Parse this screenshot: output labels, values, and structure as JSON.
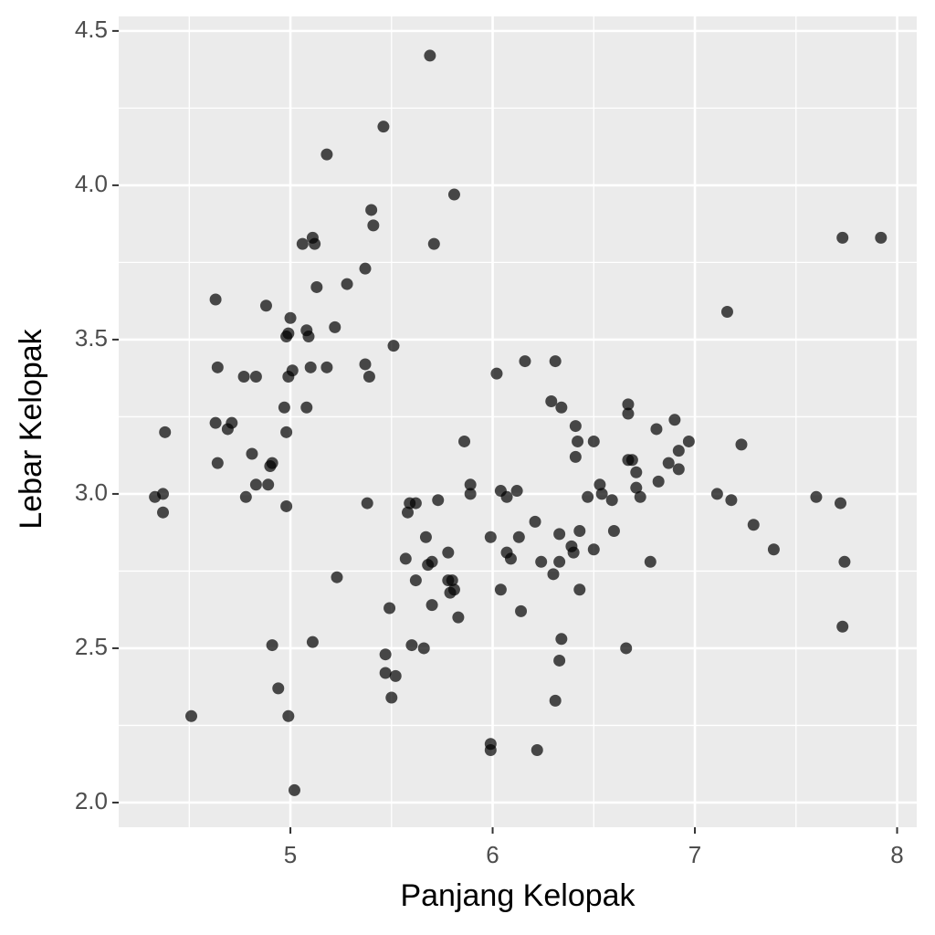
{
  "chart_data": {
    "type": "scatter",
    "x_label": "Panjang Kelopak",
    "y_label": "Lebar Kelopak",
    "xlim": [
      4.151,
      8.097
    ],
    "ylim": [
      1.92,
      4.547
    ],
    "xticks": [
      5,
      6,
      7,
      8
    ],
    "yticks": [
      {
        "value": 2,
        "label": "2.0"
      },
      2.5,
      {
        "value": 3,
        "label": "3.0"
      },
      3.5,
      {
        "value": 4,
        "label": "4.0"
      },
      4.5
    ],
    "grid": true,
    "minor_grid": true,
    "color": "#000000",
    "opacity": 0.7,
    "x": [
      4.33,
      4.37,
      4.37,
      4.38,
      4.51,
      4.63,
      4.64,
      4.63,
      4.64,
      4.69,
      4.71,
      4.77,
      4.83,
      4.78,
      4.81,
      4.83,
      4.88,
      4.89,
      4.9,
      4.91,
      4.91,
      4.94,
      4.98,
      5.0,
      4.99,
      4.97,
      4.98,
      4.98,
      4.99,
      4.99,
      5.01,
      5.02,
      5.06,
      5.08,
      5.09,
      5.08,
      5.1,
      5.11,
      5.12,
      5.13,
      5.11,
      5.18,
      5.18,
      5.22,
      5.23,
      5.28,
      5.37,
      5.37,
      5.39,
      5.38,
      5.4,
      5.41,
      5.46,
      5.47,
      5.47,
      5.49,
      5.5,
      5.51,
      5.52,
      5.57,
      5.58,
      5.59,
      5.6,
      5.62,
      5.62,
      5.66,
      5.67,
      5.68,
      5.69,
      5.7,
      5.7,
      5.71,
      5.73,
      5.78,
      5.78,
      5.79,
      5.8,
      5.81,
      5.81,
      5.83,
      5.86,
      5.89,
      5.89,
      5.99,
      5.99,
      5.99,
      6.02,
      6.04,
      6.04,
      6.07,
      6.07,
      6.09,
      6.12,
      6.13,
      6.14,
      6.16,
      6.21,
      6.22,
      6.24,
      6.29,
      6.3,
      6.31,
      6.31,
      6.33,
      6.33,
      6.34,
      6.33,
      6.34,
      6.39,
      6.4,
      6.41,
      6.41,
      6.42,
      6.43,
      6.43,
      6.47,
      6.5,
      6.5,
      6.53,
      6.54,
      6.59,
      6.6,
      6.66,
      6.67,
      6.67,
      6.67,
      6.69,
      6.71,
      6.71,
      6.73,
      6.78,
      6.81,
      6.82,
      6.87,
      6.9,
      6.92,
      6.92,
      6.97,
      7.11,
      7.16,
      7.18,
      7.23,
      7.29,
      7.39,
      7.6,
      7.72,
      7.73,
      7.74,
      7.73,
      7.92
    ],
    "y": [
      2.99,
      3.0,
      2.94,
      3.2,
      2.28,
      3.63,
      3.41,
      3.23,
      3.1,
      3.21,
      3.23,
      3.38,
      3.38,
      2.99,
      3.13,
      3.03,
      3.61,
      3.03,
      3.09,
      3.1,
      2.51,
      2.37,
      3.51,
      3.57,
      3.52,
      3.28,
      3.2,
      2.96,
      2.28,
      3.38,
      3.4,
      2.04,
      3.81,
      3.53,
      3.51,
      3.28,
      3.41,
      3.83,
      3.81,
      3.67,
      2.52,
      4.1,
      3.41,
      3.54,
      2.73,
      3.68,
      3.73,
      3.42,
      3.38,
      2.97,
      3.92,
      3.87,
      4.19,
      2.48,
      2.42,
      2.63,
      2.34,
      3.48,
      2.41,
      2.79,
      2.94,
      2.97,
      2.51,
      2.97,
      2.72,
      2.5,
      2.86,
      2.77,
      4.42,
      2.78,
      2.64,
      3.81,
      2.98,
      2.81,
      2.72,
      2.68,
      2.72,
      2.69,
      3.97,
      2.6,
      3.17,
      3.03,
      3.0,
      2.86,
      2.19,
      2.17,
      3.39,
      3.01,
      2.69,
      2.81,
      2.99,
      2.79,
      3.01,
      2.86,
      2.62,
      3.43,
      2.91,
      2.17,
      2.78,
      3.3,
      2.74,
      2.33,
      3.43,
      2.78,
      2.87,
      2.53,
      2.46,
      3.28,
      2.83,
      2.81,
      3.22,
      3.12,
      3.17,
      2.88,
      2.69,
      2.99,
      3.17,
      2.82,
      3.03,
      3.0,
      2.98,
      2.88,
      2.5,
      3.29,
      3.26,
      3.11,
      3.11,
      3.07,
      3.02,
      2.99,
      2.78,
      3.21,
      3.04,
      3.1,
      3.24,
      3.14,
      3.08,
      3.17,
      3.0,
      3.59,
      2.98,
      3.16,
      2.9,
      2.82,
      2.99,
      2.97,
      3.83,
      2.78,
      2.57,
      3.83
    ]
  }
}
